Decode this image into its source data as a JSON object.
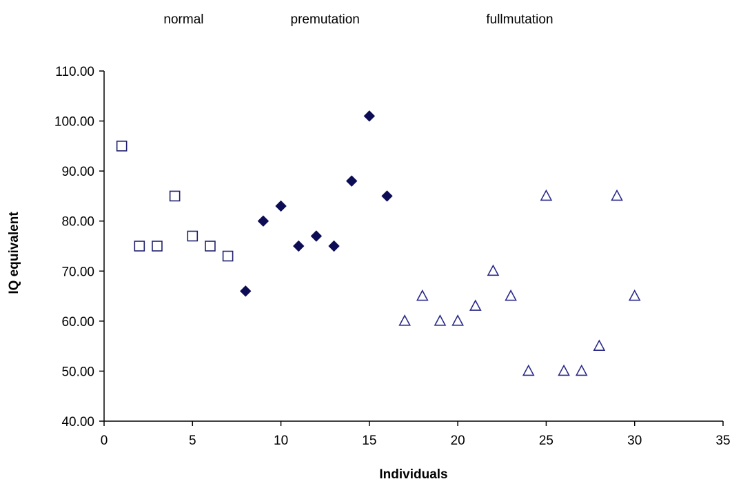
{
  "chart_data": {
    "type": "scatter",
    "title": "",
    "xlabel": "Individuals",
    "ylabel": "IQ equivalent",
    "xlim": [
      0,
      35
    ],
    "ylim": [
      40,
      110
    ],
    "x_ticks": [
      "0",
      "5",
      "10",
      "15",
      "20",
      "25",
      "30",
      "35"
    ],
    "x_tick_values": [
      0,
      5,
      10,
      15,
      20,
      25,
      30,
      35
    ],
    "y_ticks": [
      "40.00",
      "50.00",
      "60.00",
      "70.00",
      "80.00",
      "90.00",
      "100.00",
      "110.00"
    ],
    "y_tick_values": [
      40,
      50,
      60,
      70,
      80,
      90,
      100,
      110
    ],
    "grid": false,
    "legend": "none",
    "group_labels": [
      {
        "text": "normal",
        "x": 4.5
      },
      {
        "text": "premutation",
        "x": 12.5
      },
      {
        "text": "fullmutation",
        "x": 23.5
      }
    ],
    "series": [
      {
        "marker": "square-open",
        "color": "#1f1f6e",
        "points": [
          [
            1,
            95
          ],
          [
            2,
            75
          ],
          [
            3,
            75
          ],
          [
            4,
            85
          ],
          [
            5,
            77
          ],
          [
            6,
            75
          ],
          [
            7,
            73
          ]
        ]
      },
      {
        "marker": "diamond-filled",
        "color": "#0d0d55",
        "points": [
          [
            8,
            66
          ],
          [
            9,
            80
          ],
          [
            10,
            83
          ],
          [
            11,
            75
          ],
          [
            12,
            77
          ],
          [
            13,
            75
          ],
          [
            14,
            88
          ],
          [
            15,
            101
          ],
          [
            16,
            85
          ]
        ]
      },
      {
        "marker": "triangle-open",
        "color": "#2a2a8a",
        "points": [
          [
            17,
            60
          ],
          [
            18,
            65
          ],
          [
            19,
            60
          ],
          [
            20,
            60
          ],
          [
            21,
            63
          ],
          [
            22,
            70
          ],
          [
            23,
            65
          ],
          [
            24,
            50
          ],
          [
            25,
            85
          ],
          [
            26,
            50
          ],
          [
            27,
            50
          ],
          [
            28,
            55
          ],
          [
            29,
            85
          ],
          [
            30,
            65
          ]
        ]
      }
    ]
  }
}
